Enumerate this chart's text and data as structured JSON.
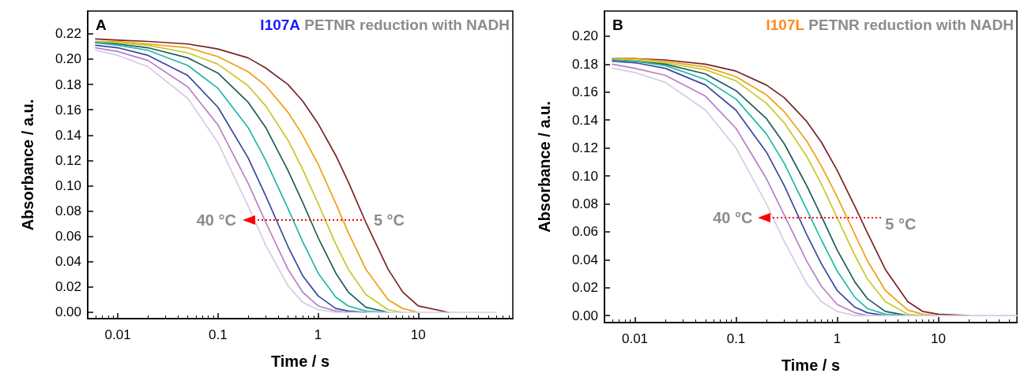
{
  "chart_data": [
    {
      "type": "line",
      "title": "I107A PETNR reduction with NADH",
      "xlabel": "Time / s",
      "ylabel": "Absorbance / a.u.",
      "log": "x",
      "grid": false,
      "annotations": [
        "A",
        {
          "text": "40 °C",
          "x": 0.235,
          "y": 0.073
        },
        {
          "text": "5 °C",
          "x": 2.94,
          "y": 0.073
        }
      ],
      "xlim": [
        0.005,
        88
      ],
      "xticks": [
        0.01,
        0.1,
        1,
        10
      ],
      "ylim": [
        -0.005,
        0.238
      ],
      "yticks": [
        {
          "value": 0,
          "label": "0.00"
        },
        {
          "value": 0.02,
          "label": "0.02"
        },
        {
          "value": 0.04,
          "label": "0.04"
        },
        {
          "value": 0.06,
          "label": "0.06"
        },
        {
          "value": 0.08,
          "label": "0.08"
        },
        {
          "value": 0.1,
          "label": "0.10"
        },
        {
          "value": 0.12,
          "label": "0.12"
        },
        {
          "value": 0.14,
          "label": "0.14"
        },
        {
          "value": 0.16,
          "label": "0.16"
        },
        {
          "value": 0.18,
          "label": "0.18"
        },
        {
          "value": 0.2,
          "label": "0.20"
        },
        {
          "value": 0.22,
          "label": "0.22"
        }
      ],
      "x": [
        0.006,
        0.01,
        0.02,
        0.05,
        0.1,
        0.2,
        0.3,
        0.5,
        0.7,
        1,
        1.5,
        2,
        3,
        5,
        7,
        10,
        20,
        60
      ],
      "series": [
        {
          "color": "#7a2424",
          "values": [
            0.216,
            0.215,
            0.214,
            0.212,
            0.208,
            0.201,
            0.193,
            0.18,
            0.167,
            0.149,
            0.124,
            0.103,
            0.071,
            0.034,
            0.016,
            0.005,
            0.0,
            null
          ]
        },
        {
          "color": "#f0a010",
          "values": [
            0.214,
            0.214,
            0.212,
            0.209,
            0.202,
            0.19,
            0.179,
            0.158,
            0.14,
            0.117,
            0.086,
            0.063,
            0.034,
            0.01,
            0.003,
            0.0,
            null,
            null
          ]
        },
        {
          "color": "#c8c828",
          "values": [
            0.214,
            0.213,
            0.211,
            0.205,
            0.196,
            0.179,
            0.163,
            0.136,
            0.113,
            0.086,
            0.054,
            0.034,
            0.014,
            0.002,
            0.0,
            null,
            null,
            null
          ]
        },
        {
          "color": "#1f5c5c",
          "values": [
            0.213,
            0.212,
            0.209,
            0.201,
            0.189,
            0.166,
            0.146,
            0.112,
            0.087,
            0.059,
            0.031,
            0.016,
            0.004,
            0.0,
            null,
            null,
            null,
            null
          ]
        },
        {
          "color": "#20b8a8",
          "values": [
            0.213,
            0.211,
            0.207,
            0.195,
            0.177,
            0.146,
            0.12,
            0.082,
            0.056,
            0.031,
            0.012,
            0.005,
            0.001,
            0.0,
            null,
            null,
            null,
            null
          ]
        },
        {
          "color": "#3a48a0",
          "values": [
            0.211,
            0.209,
            0.203,
            0.187,
            0.162,
            0.122,
            0.092,
            0.052,
            0.029,
            0.013,
            0.003,
            0.001,
            0.0,
            null,
            null,
            null,
            null,
            null
          ]
        },
        {
          "color": "#b77fc9",
          "values": [
            0.209,
            0.206,
            0.199,
            0.178,
            0.148,
            0.102,
            0.071,
            0.034,
            0.016,
            0.005,
            0.001,
            0.0,
            null,
            null,
            null,
            null,
            null,
            null
          ]
        },
        {
          "color": "#d4cce6",
          "values": [
            0.207,
            0.203,
            0.194,
            0.169,
            0.134,
            0.084,
            0.053,
            0.021,
            0.008,
            0.002,
            0.0,
            0.0,
            0.0,
            0.0,
            0.0,
            0.0,
            0.0,
            0.0
          ]
        }
      ]
    },
    {
      "type": "line",
      "title": "I107L PETNR reduction with NADH",
      "xlabel": "Time / s",
      "ylabel": "Absorbance / a.u.",
      "log": "x",
      "grid": false,
      "annotations": [
        "B",
        {
          "text": "40 °C",
          "x": 0.237,
          "y": 0.07
        },
        {
          "text": "5 °C",
          "x": 1.71,
          "y": 0.07
        }
      ],
      "xlim": [
        0.005,
        60
      ],
      "xticks": [
        0.01,
        0.1,
        1,
        10
      ],
      "ylim": [
        -0.005,
        0.218
      ],
      "yticks": [
        {
          "value": 0,
          "label": "0.00"
        },
        {
          "value": 0.02,
          "label": "0.02"
        },
        {
          "value": 0.04,
          "label": "0.04"
        },
        {
          "value": 0.06,
          "label": "0.06"
        },
        {
          "value": 0.08,
          "label": "0.08"
        },
        {
          "value": 0.1,
          "label": "0.10"
        },
        {
          "value": 0.12,
          "label": "0.12"
        },
        {
          "value": 0.14,
          "label": "0.14"
        },
        {
          "value": 0.16,
          "label": "0.16"
        },
        {
          "value": 0.18,
          "label": "0.18"
        },
        {
          "value": 0.2,
          "label": "0.20"
        }
      ],
      "x": [
        0.006,
        0.01,
        0.02,
        0.05,
        0.1,
        0.2,
        0.3,
        0.5,
        0.7,
        1,
        1.5,
        2,
        3,
        5,
        7,
        10,
        20,
        60
      ],
      "series": [
        {
          "color": "#7a2424",
          "values": [
            0.184,
            0.184,
            0.183,
            0.18,
            0.175,
            0.165,
            0.156,
            0.139,
            0.124,
            0.104,
            0.078,
            0.059,
            0.033,
            0.01,
            0.003,
            0.001,
            0.0,
            null
          ]
        },
        {
          "color": "#f0a010",
          "values": [
            0.184,
            0.184,
            0.182,
            0.178,
            0.171,
            0.158,
            0.146,
            0.125,
            0.107,
            0.085,
            0.058,
            0.039,
            0.018,
            0.004,
            0.001,
            0.0,
            null,
            null
          ]
        },
        {
          "color": "#c8c828",
          "values": [
            0.184,
            0.183,
            0.181,
            0.176,
            0.168,
            0.152,
            0.138,
            0.114,
            0.094,
            0.07,
            0.043,
            0.026,
            0.01,
            0.001,
            0.0,
            null,
            null,
            null
          ]
        },
        {
          "color": "#1f5c5c",
          "values": [
            0.183,
            0.182,
            0.18,
            0.173,
            0.161,
            0.141,
            0.123,
            0.093,
            0.071,
            0.047,
            0.024,
            0.012,
            0.003,
            0.0,
            null,
            null,
            null,
            null
          ]
        },
        {
          "color": "#20b8a8",
          "values": [
            0.183,
            0.182,
            0.179,
            0.169,
            0.155,
            0.13,
            0.109,
            0.076,
            0.054,
            0.032,
            0.013,
            0.005,
            0.001,
            0.0,
            null,
            null,
            null,
            null
          ]
        },
        {
          "color": "#3a48a0",
          "values": [
            0.182,
            0.181,
            0.177,
            0.165,
            0.147,
            0.117,
            0.093,
            0.058,
            0.037,
            0.018,
            0.006,
            0.002,
            0.0,
            null,
            null,
            null,
            null,
            null
          ]
        },
        {
          "color": "#b77fc9",
          "values": [
            0.18,
            0.177,
            0.172,
            0.157,
            0.134,
            0.098,
            0.072,
            0.039,
            0.021,
            0.008,
            0.002,
            0.0,
            null,
            null,
            null,
            null,
            null,
            null
          ]
        },
        {
          "color": "#d4cce6",
          "values": [
            0.177,
            0.174,
            0.167,
            0.147,
            0.12,
            0.08,
            0.053,
            0.023,
            0.01,
            0.003,
            0.0,
            0.0,
            0.0,
            0.0,
            0.0,
            0.0,
            0.0,
            0.0
          ]
        }
      ]
    }
  ]
}
